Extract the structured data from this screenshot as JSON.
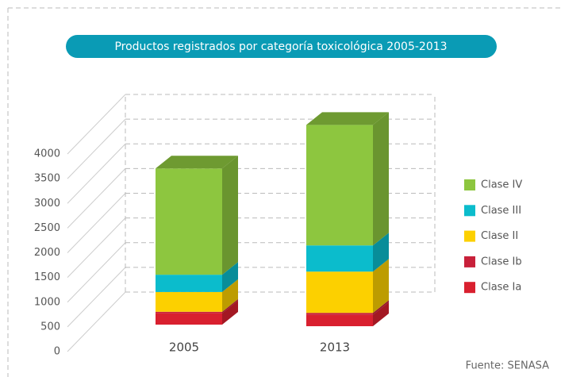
{
  "chart_data": {
    "type": "bar3d_stacked",
    "title": "Productos registrados por categoría toxicológica 2005-2013",
    "source": "Fuente: SENASA",
    "categories": [
      "2005",
      "2013"
    ],
    "series": [
      {
        "name": "Clase Ia",
        "color": "#d9202f",
        "values": [
          230,
          230
        ]
      },
      {
        "name": "Clase Ib",
        "color": "#c8203a",
        "values": [
          30,
          40
        ]
      },
      {
        "name": "Clase II",
        "color": "#fcd000",
        "values": [
          400,
          835
        ]
      },
      {
        "name": "Clase III",
        "color": "#0bbccc",
        "values": [
          350,
          530
        ]
      },
      {
        "name": "Clase IV",
        "color": "#8dc63f",
        "values": [
          2150,
          2440
        ]
      }
    ],
    "ylim": [
      0,
      4000
    ],
    "yticks": [
      0,
      500,
      1000,
      1500,
      2000,
      2500,
      3000,
      3500,
      4000
    ],
    "grid": true,
    "legend": "right"
  }
}
